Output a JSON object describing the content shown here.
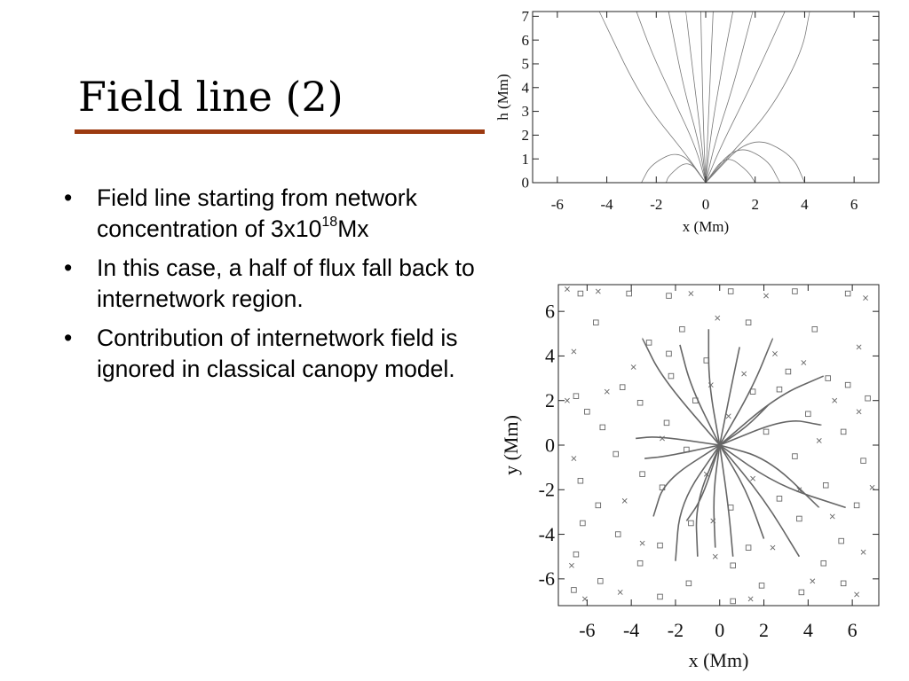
{
  "slide": {
    "title": "Field line (2)",
    "bullets": [
      {
        "pre": "Field line starting from network concentration of 3x10",
        "sup": "18",
        "post": "Mx"
      },
      {
        "pre": "In this case, a half of flux fall back to internetwork region.",
        "sup": "",
        "post": ""
      },
      {
        "pre": "Contribution of internetwork field is ignored in classical canopy model.",
        "sup": "",
        "post": ""
      }
    ]
  },
  "chart_data": [
    {
      "type": "line",
      "title": "",
      "xlabel": "x (Mm)",
      "ylabel": "h (Mm)",
      "xlim": [
        -7.0,
        7.0
      ],
      "ylim": [
        0,
        7.2
      ],
      "xticks": [
        -6,
        -4,
        -2,
        0,
        2,
        4,
        6
      ],
      "yticks": [
        0,
        1,
        2,
        3,
        4,
        5,
        6,
        7
      ],
      "series": [
        {
          "values": [
            [
              0,
              0
            ],
            [
              -0.4,
              1.5
            ],
            [
              -1.3,
              3.5
            ],
            [
              -2.2,
              5.5
            ],
            [
              -2.8,
              7.2
            ]
          ]
        },
        {
          "values": [
            [
              0,
              0
            ],
            [
              -0.3,
              1.8
            ],
            [
              -0.9,
              4
            ],
            [
              -1.5,
              7.2
            ]
          ]
        },
        {
          "values": [
            [
              0,
              0
            ],
            [
              -0.2,
              2
            ],
            [
              -0.5,
              4.5
            ],
            [
              -0.8,
              7.2
            ]
          ]
        },
        {
          "values": [
            [
              0,
              0
            ],
            [
              -0.1,
              2.5
            ],
            [
              -0.2,
              7.2
            ]
          ]
        },
        {
          "values": [
            [
              0,
              0
            ],
            [
              0.1,
              2.5
            ],
            [
              0.3,
              7.2
            ]
          ]
        },
        {
          "values": [
            [
              0,
              0
            ],
            [
              0.2,
              2
            ],
            [
              0.6,
              4.5
            ],
            [
              1.1,
              7.2
            ]
          ]
        },
        {
          "values": [
            [
              0,
              0
            ],
            [
              0.4,
              1.8
            ],
            [
              1.1,
              4
            ],
            [
              1.9,
              7.2
            ]
          ]
        },
        {
          "values": [
            [
              0,
              0
            ],
            [
              0.6,
              1.5
            ],
            [
              1.8,
              4
            ],
            [
              3.2,
              7.2
            ]
          ]
        },
        {
          "values": [
            [
              0,
              0
            ],
            [
              -0.8,
              1.2
            ],
            [
              -2.6,
              3.5
            ],
            [
              -4.3,
              7.2
            ]
          ]
        },
        {
          "values": [
            [
              0,
              0
            ],
            [
              1,
              1.2
            ],
            [
              2.6,
              3
            ],
            [
              3.9,
              5.5
            ],
            [
              4.2,
              7.2
            ]
          ]
        },
        {
          "values": [
            [
              0,
              0
            ],
            [
              -1,
              1.4
            ],
            [
              -2.2,
              0.8
            ],
            [
              -2.6,
              0
            ]
          ]
        },
        {
          "values": [
            [
              0,
              0
            ],
            [
              1.2,
              1.6
            ],
            [
              2.5,
              1
            ],
            [
              3,
              0
            ]
          ]
        },
        {
          "values": [
            [
              0,
              0
            ],
            [
              0.8,
              1.2
            ],
            [
              1.7,
              0.5
            ],
            [
              2,
              0
            ]
          ]
        },
        {
          "values": [
            [
              0,
              0
            ],
            [
              -0.7,
              1
            ],
            [
              -1.5,
              0.3
            ],
            [
              -1.6,
              0
            ]
          ]
        },
        {
          "values": [
            [
              0,
              0
            ],
            [
              1.8,
              2
            ],
            [
              3.5,
              1.2
            ],
            [
              4,
              0
            ]
          ]
        }
      ]
    },
    {
      "type": "scatter",
      "title": "",
      "xlabel": "x (Mm)",
      "ylabel": "y (Mm)",
      "xlim": [
        -7.3,
        7.2
      ],
      "ylim": [
        -7.2,
        7.2
      ],
      "xticks": [
        -6,
        -4,
        -2,
        0,
        2,
        4,
        6
      ],
      "yticks": [
        -6,
        -4,
        -2,
        0,
        2,
        4,
        6
      ],
      "series": [
        {
          "name": "",
          "marker": "square",
          "values": [
            [
              -6.3,
              6.8
            ],
            [
              -4.1,
              6.8
            ],
            [
              -2.3,
              6.7
            ],
            [
              0.5,
              6.9
            ],
            [
              3.4,
              6.9
            ],
            [
              5.8,
              6.8
            ],
            [
              -5.6,
              5.5
            ],
            [
              -3.2,
              4.6
            ],
            [
              -1.7,
              5.2
            ],
            [
              1.3,
              5.5
            ],
            [
              4.3,
              5.2
            ],
            [
              -2.3,
              4.1
            ],
            [
              -0.6,
              3.8
            ],
            [
              3.1,
              3.3
            ],
            [
              4.9,
              3
            ],
            [
              -6.5,
              2.2
            ],
            [
              -4.4,
              2.6
            ],
            [
              -2.2,
              3.1
            ],
            [
              2.7,
              2.5
            ],
            [
              5.8,
              2.7
            ],
            [
              -6,
              1.5
            ],
            [
              -3.6,
              1.9
            ],
            [
              -1.1,
              2
            ],
            [
              1.5,
              2.4
            ],
            [
              4,
              1.4
            ],
            [
              6.7,
              2.1
            ],
            [
              -5.3,
              0.8
            ],
            [
              -2.4,
              1
            ],
            [
              2.1,
              0.6
            ],
            [
              5.6,
              0.6
            ],
            [
              -4.7,
              -0.4
            ],
            [
              -1.5,
              -0.2
            ],
            [
              3.4,
              -0.5
            ],
            [
              6.5,
              -0.7
            ],
            [
              -3.5,
              -1.3
            ],
            [
              4.8,
              -1.8
            ],
            [
              -6.3,
              -1.6
            ],
            [
              -5.5,
              -2.7
            ],
            [
              -2.6,
              -1.9
            ],
            [
              0.5,
              -2.8
            ],
            [
              2.7,
              -2.4
            ],
            [
              6.2,
              -2.7
            ],
            [
              -6.2,
              -3.5
            ],
            [
              -1.3,
              -3.5
            ],
            [
              3.6,
              -3.3
            ],
            [
              -4.6,
              -4
            ],
            [
              -2.7,
              -4.5
            ],
            [
              1.3,
              -4.6
            ],
            [
              5.5,
              -4.3
            ],
            [
              -6.5,
              -4.9
            ],
            [
              -3.6,
              -5.3
            ],
            [
              0.6,
              -5.4
            ],
            [
              4.7,
              -5.3
            ],
            [
              -5.4,
              -6.1
            ],
            [
              -1.4,
              -6.2
            ],
            [
              1.9,
              -6.3
            ],
            [
              5.6,
              -6.2
            ],
            [
              -2.7,
              -6.8
            ],
            [
              0.6,
              -7
            ],
            [
              3.7,
              -6.6
            ],
            [
              -6.6,
              -6.5
            ]
          ]
        },
        {
          "name": "",
          "marker": "cross",
          "values": [
            [
              -6.9,
              7
            ],
            [
              -5.5,
              6.9
            ],
            [
              -1.3,
              6.8
            ],
            [
              2.1,
              6.7
            ],
            [
              6.6,
              6.6
            ],
            [
              -6.6,
              4.2
            ],
            [
              -0.1,
              5.7
            ],
            [
              2.5,
              4.1
            ],
            [
              6.3,
              4.4
            ],
            [
              -3.9,
              3.5
            ],
            [
              1.1,
              3.2
            ],
            [
              3.8,
              3.7
            ],
            [
              -6.9,
              2
            ],
            [
              -0.4,
              2.7
            ],
            [
              5.2,
              2
            ],
            [
              -5.1,
              2.4
            ],
            [
              0.4,
              1.3
            ],
            [
              6.3,
              1.5
            ],
            [
              -2.6,
              0.3
            ],
            [
              4.5,
              0.2
            ],
            [
              -6.6,
              -0.6
            ],
            [
              -0.6,
              -1.3
            ],
            [
              1.5,
              -1.5
            ],
            [
              6.9,
              -1.9
            ],
            [
              -4.3,
              -2.5
            ],
            [
              3.6,
              -2
            ],
            [
              -0.3,
              -3.4
            ],
            [
              5.1,
              -3.2
            ],
            [
              -3.5,
              -4.4
            ],
            [
              2.4,
              -4.6
            ],
            [
              6.5,
              -4.8
            ],
            [
              -6.7,
              -5.4
            ],
            [
              -0.2,
              -5
            ],
            [
              4.2,
              -6.1
            ],
            [
              -4.5,
              -6.6
            ],
            [
              1.4,
              -6.9
            ],
            [
              -6.1,
              -6.9
            ],
            [
              6.2,
              -6.7
            ]
          ]
        },
        {
          "name": "",
          "marker": "line",
          "values": [
            [
              0,
              0
            ],
            [
              -2.6,
              3
            ],
            [
              -3.5,
              4.8
            ]
          ]
        },
        {
          "name": "",
          "marker": "line",
          "values": [
            [
              0,
              0
            ],
            [
              -1.3,
              2.6
            ],
            [
              -1.8,
              4.5
            ]
          ]
        },
        {
          "name": "",
          "marker": "line",
          "values": [
            [
              0,
              0
            ],
            [
              -0.5,
              2.8
            ],
            [
              -0.5,
              5.2
            ]
          ]
        },
        {
          "name": "",
          "marker": "line",
          "values": [
            [
              0,
              0
            ],
            [
              0.5,
              2.5
            ],
            [
              0.9,
              4.4
            ]
          ]
        },
        {
          "name": "",
          "marker": "line",
          "values": [
            [
              0,
              0
            ],
            [
              1.5,
              2.6
            ],
            [
              2.4,
              4.8
            ]
          ]
        },
        {
          "name": "",
          "marker": "line",
          "values": [
            [
              0,
              0
            ],
            [
              2.6,
              2.2
            ],
            [
              4.7,
              3.1
            ]
          ]
        },
        {
          "name": "",
          "marker": "line",
          "values": [
            [
              0,
              0
            ],
            [
              3,
              1.2
            ],
            [
              4.6,
              0.9
            ]
          ]
        },
        {
          "name": "",
          "marker": "line",
          "values": [
            [
              0,
              0
            ],
            [
              -2.8,
              0.4
            ],
            [
              -3.8,
              0.3
            ]
          ]
        },
        {
          "name": "",
          "marker": "line",
          "values": [
            [
              0,
              0
            ],
            [
              -2.4,
              -0.5
            ],
            [
              -3.4,
              -0.6
            ]
          ]
        },
        {
          "name": "",
          "marker": "line",
          "values": [
            [
              0,
              0
            ],
            [
              -2.5,
              -1.6
            ],
            [
              -3,
              -3.2
            ]
          ]
        },
        {
          "name": "",
          "marker": "line",
          "values": [
            [
              0,
              0
            ],
            [
              -1.8,
              -2.6
            ],
            [
              -2,
              -5.2
            ]
          ]
        },
        {
          "name": "",
          "marker": "line",
          "values": [
            [
              0,
              0
            ],
            [
              -1.1,
              -2.6
            ],
            [
              -1,
              -5
            ]
          ]
        },
        {
          "name": "",
          "marker": "line",
          "values": [
            [
              0,
              0
            ],
            [
              -0.3,
              -2.2
            ],
            [
              -0.2,
              -4.6
            ]
          ]
        },
        {
          "name": "",
          "marker": "line",
          "values": [
            [
              0,
              0
            ],
            [
              0.4,
              -2.8
            ],
            [
              0.6,
              -5
            ]
          ]
        },
        {
          "name": "",
          "marker": "line",
          "values": [
            [
              0,
              0
            ],
            [
              1.2,
              -2
            ],
            [
              2,
              -4.2
            ]
          ]
        },
        {
          "name": "",
          "marker": "line",
          "values": [
            [
              0,
              0
            ],
            [
              2,
              -2.4
            ],
            [
              3.6,
              -5
            ]
          ]
        },
        {
          "name": "",
          "marker": "line",
          "values": [
            [
              0,
              0
            ],
            [
              2.2,
              -0.6
            ],
            [
              4.5,
              -2.8
            ]
          ]
        },
        {
          "name": "",
          "marker": "line",
          "values": [
            [
              0,
              0
            ],
            [
              2.6,
              -1.8
            ],
            [
              5.7,
              -2.8
            ]
          ]
        },
        {
          "name": "",
          "marker": "line",
          "values": [
            [
              0,
              0
            ],
            [
              -0.8,
              -2.4
            ],
            [
              -1.5,
              -3.4
            ]
          ]
        },
        {
          "name": "",
          "marker": "line",
          "values": [
            [
              0,
              0
            ],
            [
              1.2,
              0.8
            ],
            [
              2.2,
              1.8
            ]
          ]
        }
      ]
    }
  ]
}
